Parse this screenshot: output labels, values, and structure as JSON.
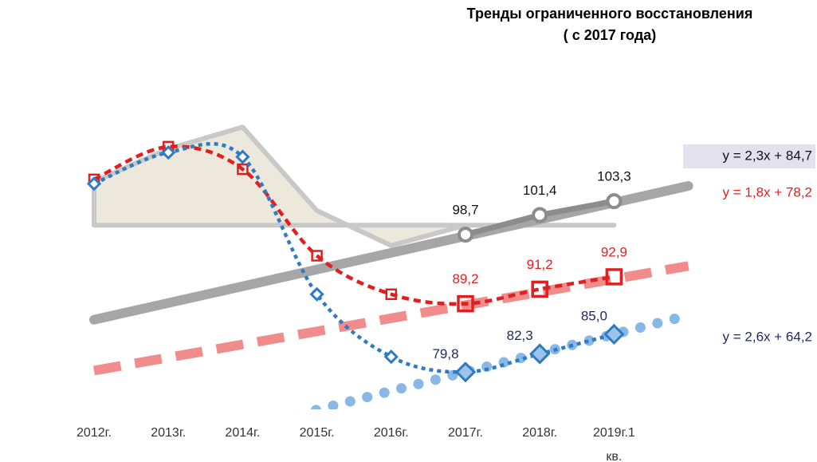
{
  "chart_data": {
    "type": "line",
    "title": "Тренды ограниченного восстановления",
    "subtitle": "( с 2017 года)",
    "categories": [
      "2012г.",
      "2013г.",
      "2014г.",
      "2015г.",
      "2016г.",
      "2017г.",
      "2018г.",
      "2019г.1 кв."
    ],
    "ylim": [
      75,
      120
    ],
    "yticks": [
      75,
      80,
      85,
      90,
      95,
      100,
      105,
      110,
      115,
      120
    ],
    "grid": true,
    "area": {
      "color": "#ece9dc",
      "edge": "#c8c8c8",
      "base": 100,
      "values": [
        106,
        110.5,
        113.5,
        102,
        97.2,
        100,
        100,
        100
      ]
    },
    "series": [
      {
        "color": "#8c8c8c",
        "style": "solid",
        "values": [
          null,
          null,
          null,
          null,
          null,
          98.7,
          101.4,
          103.3
        ],
        "value_labels": [
          null,
          null,
          null,
          null,
          null,
          "98,7",
          "101,4",
          "103,3"
        ],
        "label_color": "#111111"
      },
      {
        "color": "#e02020",
        "style": "dashed",
        "values": [
          106.3,
          110.8,
          107.7,
          95.8,
          90.5,
          89.2,
          91.2,
          92.9
        ],
        "value_labels": [
          null,
          null,
          null,
          null,
          null,
          "89,2",
          "91,2",
          "92,9"
        ],
        "label_color": "#e02020"
      },
      {
        "color": "#2e7bc4",
        "style": "dotted",
        "values": [
          105.7,
          110,
          109.4,
          90.5,
          81.9,
          79.8,
          82.3,
          85.0
        ],
        "value_labels": [
          null,
          null,
          null,
          null,
          null,
          "79,8",
          "82,3",
          "85,0"
        ],
        "label_color": "#1f2a60"
      }
    ],
    "trendlines": [
      {
        "label": "y = 2,3x + 84,7",
        "color": "#a6a6a6",
        "label_color": "#111111",
        "style": "solid",
        "values": [
          87,
          105.4
        ]
      },
      {
        "label": "y = 1,8x + 78,2",
        "color": "#f08c8c",
        "label_color": "#e02020",
        "style": "dashed",
        "values": [
          80,
          94.4
        ]
      },
      {
        "label": "y = 2,6x + 64,2",
        "color": "#8ab8e6",
        "label_color": "#1f2a60",
        "style": "dots",
        "values": [
          66.8,
          87.6
        ]
      }
    ]
  }
}
